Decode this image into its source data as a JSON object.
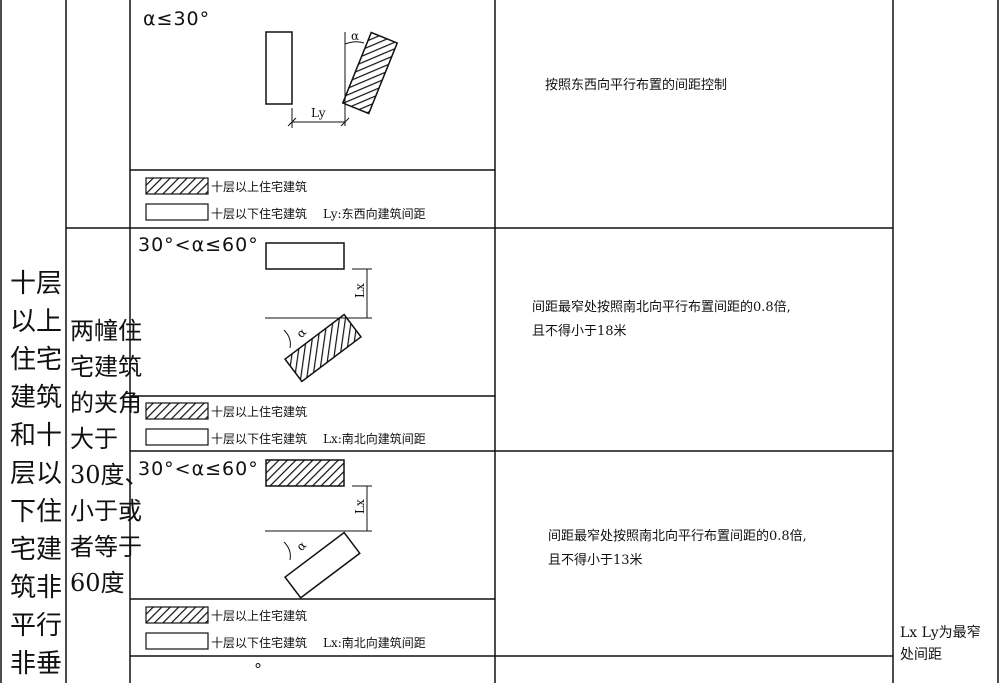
{
  "left_column": {
    "lines": [
      "十层",
      "以上",
      "住宅",
      "建筑",
      "和十",
      "层以",
      "下住",
      "宅建",
      "筑非",
      "平行",
      "非垂"
    ]
  },
  "second_column": {
    "lines": [
      "两幢住",
      "宅建筑",
      "的夹角",
      "大于",
      "30度、",
      "小于或",
      "者等于",
      "60度"
    ]
  },
  "rows": [
    {
      "angle_label": "α≤30°",
      "alpha_symbol": "α",
      "dimension_label": "Ly",
      "rule": [
        "按照东西向平行布置的间距控制"
      ],
      "legend": {
        "hatched": "十层以上住宅建筑",
        "plain": "十层以下住宅建筑",
        "spacing": "Ly:东西向建筑间距"
      }
    },
    {
      "angle_label": "30°<α≤60°",
      "alpha_symbol": "α",
      "dimension_label": "Lx",
      "rule": [
        "间距最窄处按照南北向平行布置间距的0.8倍,",
        "且不得小于18米"
      ],
      "legend": {
        "hatched": "十层以上住宅建筑",
        "plain": "十层以下住宅建筑",
        "spacing": "Lx:南北向建筑间距"
      }
    },
    {
      "angle_label": "30°<α≤60°",
      "alpha_symbol": "α",
      "dimension_label": "Lx",
      "rule": [
        "间距最窄处按照南北向平行布置间距的0.8倍,",
        "且不得小于13米"
      ],
      "legend": {
        "hatched": "十层以上住宅建筑",
        "plain": "十层以下住宅建筑",
        "spacing": "Lx:南北向建筑间距"
      }
    }
  ],
  "partial_row": {
    "mark": "°"
  },
  "note": {
    "lines": [
      "Lx Ly为最窄",
      "处间距"
    ]
  }
}
